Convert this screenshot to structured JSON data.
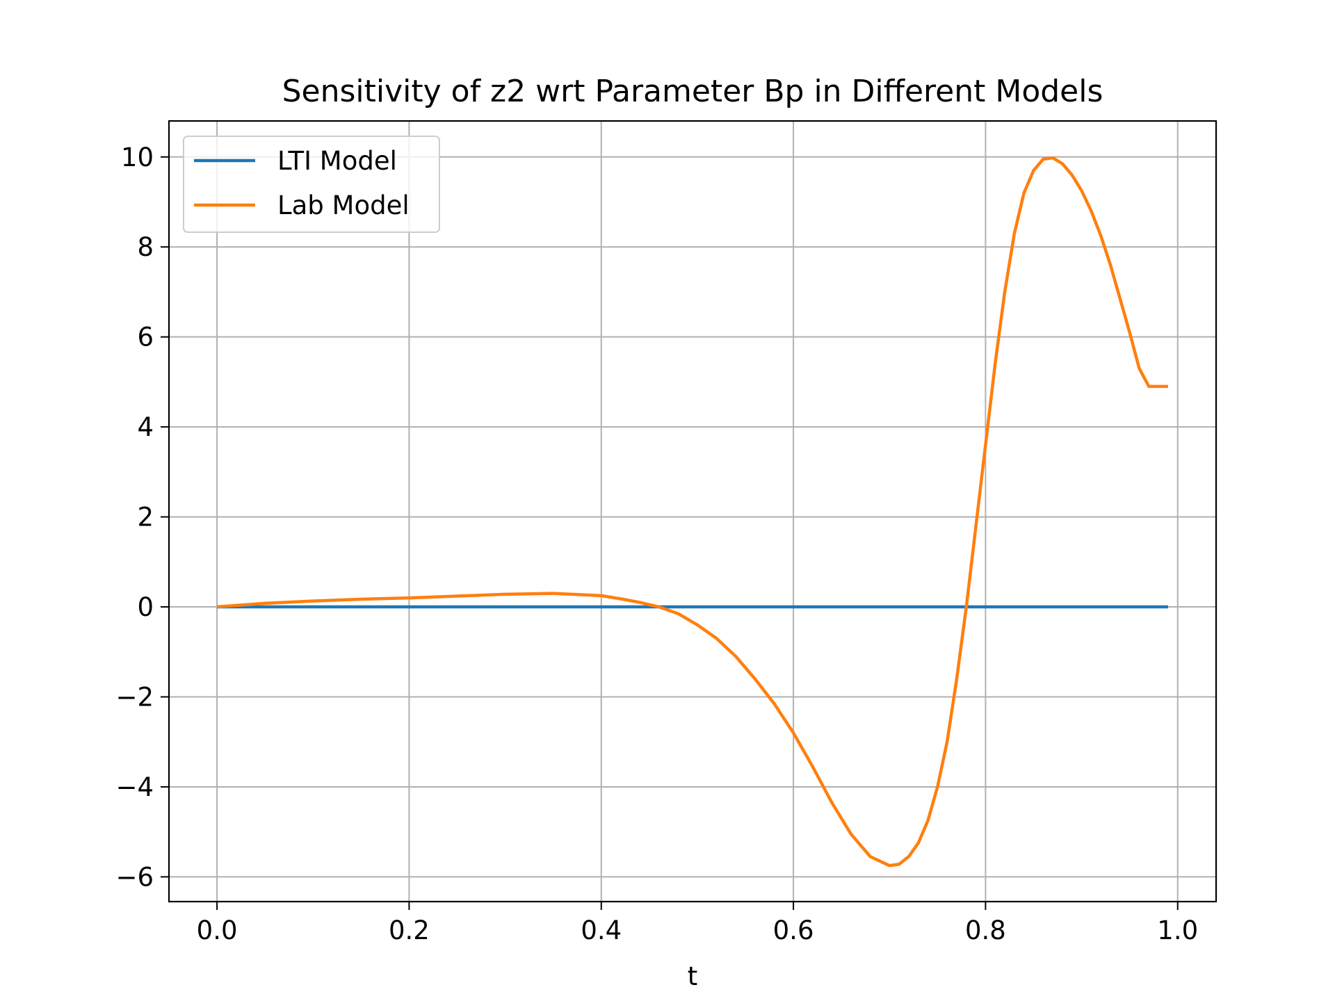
{
  "chart_data": {
    "type": "line",
    "title": "Sensitivity of z2 wrt Parameter Bp in Different Models",
    "xlabel": "t",
    "ylabel": "",
    "xlim": [
      -0.05,
      1.04
    ],
    "ylim": [
      -6.55,
      10.8
    ],
    "xticks": [
      0.0,
      0.2,
      0.4,
      0.6,
      0.8,
      1.0
    ],
    "xtick_labels": [
      "0.0",
      "0.2",
      "0.4",
      "0.6",
      "0.8",
      "1.0"
    ],
    "yticks": [
      -6,
      -4,
      -2,
      0,
      2,
      4,
      6,
      8,
      10
    ],
    "ytick_labels": [
      "−6",
      "−4",
      "−2",
      "0",
      "2",
      "4",
      "6",
      "8",
      "10"
    ],
    "grid": true,
    "legend_position": "upper-left",
    "series": [
      {
        "name": "LTI Model",
        "color": "#1f77b4",
        "x": [
          0.0,
          0.99
        ],
        "y": [
          0.0,
          0.0
        ]
      },
      {
        "name": "Lab Model",
        "color": "#ff7f0e",
        "x": [
          0.0,
          0.05,
          0.1,
          0.15,
          0.2,
          0.25,
          0.3,
          0.35,
          0.4,
          0.42,
          0.44,
          0.46,
          0.48,
          0.5,
          0.52,
          0.54,
          0.56,
          0.58,
          0.6,
          0.62,
          0.64,
          0.66,
          0.68,
          0.7,
          0.71,
          0.72,
          0.73,
          0.74,
          0.75,
          0.76,
          0.77,
          0.78,
          0.79,
          0.8,
          0.81,
          0.82,
          0.83,
          0.84,
          0.85,
          0.86,
          0.87,
          0.88,
          0.89,
          0.9,
          0.91,
          0.92,
          0.93,
          0.94,
          0.95,
          0.96,
          0.97,
          0.98,
          0.99
        ],
        "y": [
          0.0,
          0.08,
          0.13,
          0.17,
          0.2,
          0.24,
          0.28,
          0.3,
          0.25,
          0.18,
          0.1,
          0.0,
          -0.15,
          -0.4,
          -0.7,
          -1.1,
          -1.6,
          -2.15,
          -2.8,
          -3.55,
          -4.35,
          -5.05,
          -5.55,
          -5.75,
          -5.72,
          -5.55,
          -5.25,
          -4.75,
          -4.0,
          -3.0,
          -1.6,
          0.0,
          1.8,
          3.6,
          5.4,
          7.0,
          8.3,
          9.2,
          9.7,
          9.95,
          9.98,
          9.85,
          9.6,
          9.25,
          8.8,
          8.25,
          7.6,
          6.85,
          6.1,
          5.3,
          4.9,
          4.9,
          4.9
        ]
      }
    ]
  }
}
